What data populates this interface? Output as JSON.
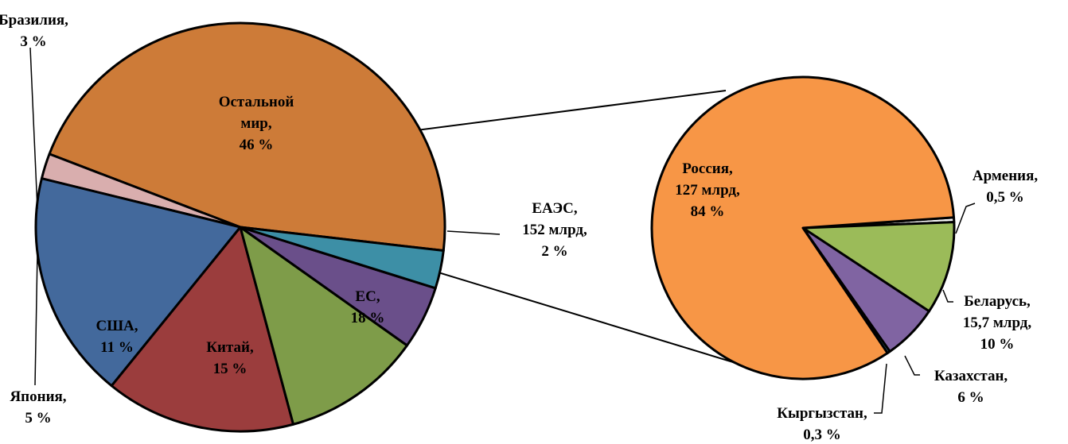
{
  "chart_data": {
    "type": "pie",
    "main": {
      "slices": [
        {
          "label": [
            "Остальной",
            "мир,",
            "46 %"
          ],
          "value": 46,
          "color": "#cd7b38"
        },
        {
          "label": [
            "ЕАЭС,",
            "152 млрд,",
            "2 %"
          ],
          "value": 2,
          "color": "#d9aeae"
        },
        {
          "label": [
            "ЕС,",
            "18 %"
          ],
          "value": 18,
          "color": "#43699c"
        },
        {
          "label": [
            "Китай,",
            "15 %"
          ],
          "value": 15,
          "color": "#9b3d3d"
        },
        {
          "label": [
            "США,",
            "11 %"
          ],
          "value": 11,
          "color": "#7e9c49"
        },
        {
          "label": [
            "Япония,",
            "5 %"
          ],
          "value": 5,
          "color": "#6a4f8a"
        },
        {
          "label": [
            "Бразилия,",
            "3 %"
          ],
          "value": 3,
          "color": "#3d8fa6"
        }
      ]
    },
    "secondary": {
      "slices": [
        {
          "label": [
            "Армения,",
            "0,5 %"
          ],
          "value": 0.5,
          "color": "#f7f7f7"
        },
        {
          "label": [
            "Беларусь,",
            "15,7 млрд,",
            "10 %"
          ],
          "value": 10,
          "color": "#9bbb59"
        },
        {
          "label": [
            "Казахстан,",
            "6 %"
          ],
          "value": 6,
          "color": "#8064a2"
        },
        {
          "label": [
            "Кыргызстан,",
            "0,3 %"
          ],
          "value": 0.3,
          "color": "#4bacc6"
        },
        {
          "label": [
            "Россия,",
            "127 млрд,",
            "84 %"
          ],
          "value": 84,
          "color": "#f79646"
        }
      ]
    }
  }
}
